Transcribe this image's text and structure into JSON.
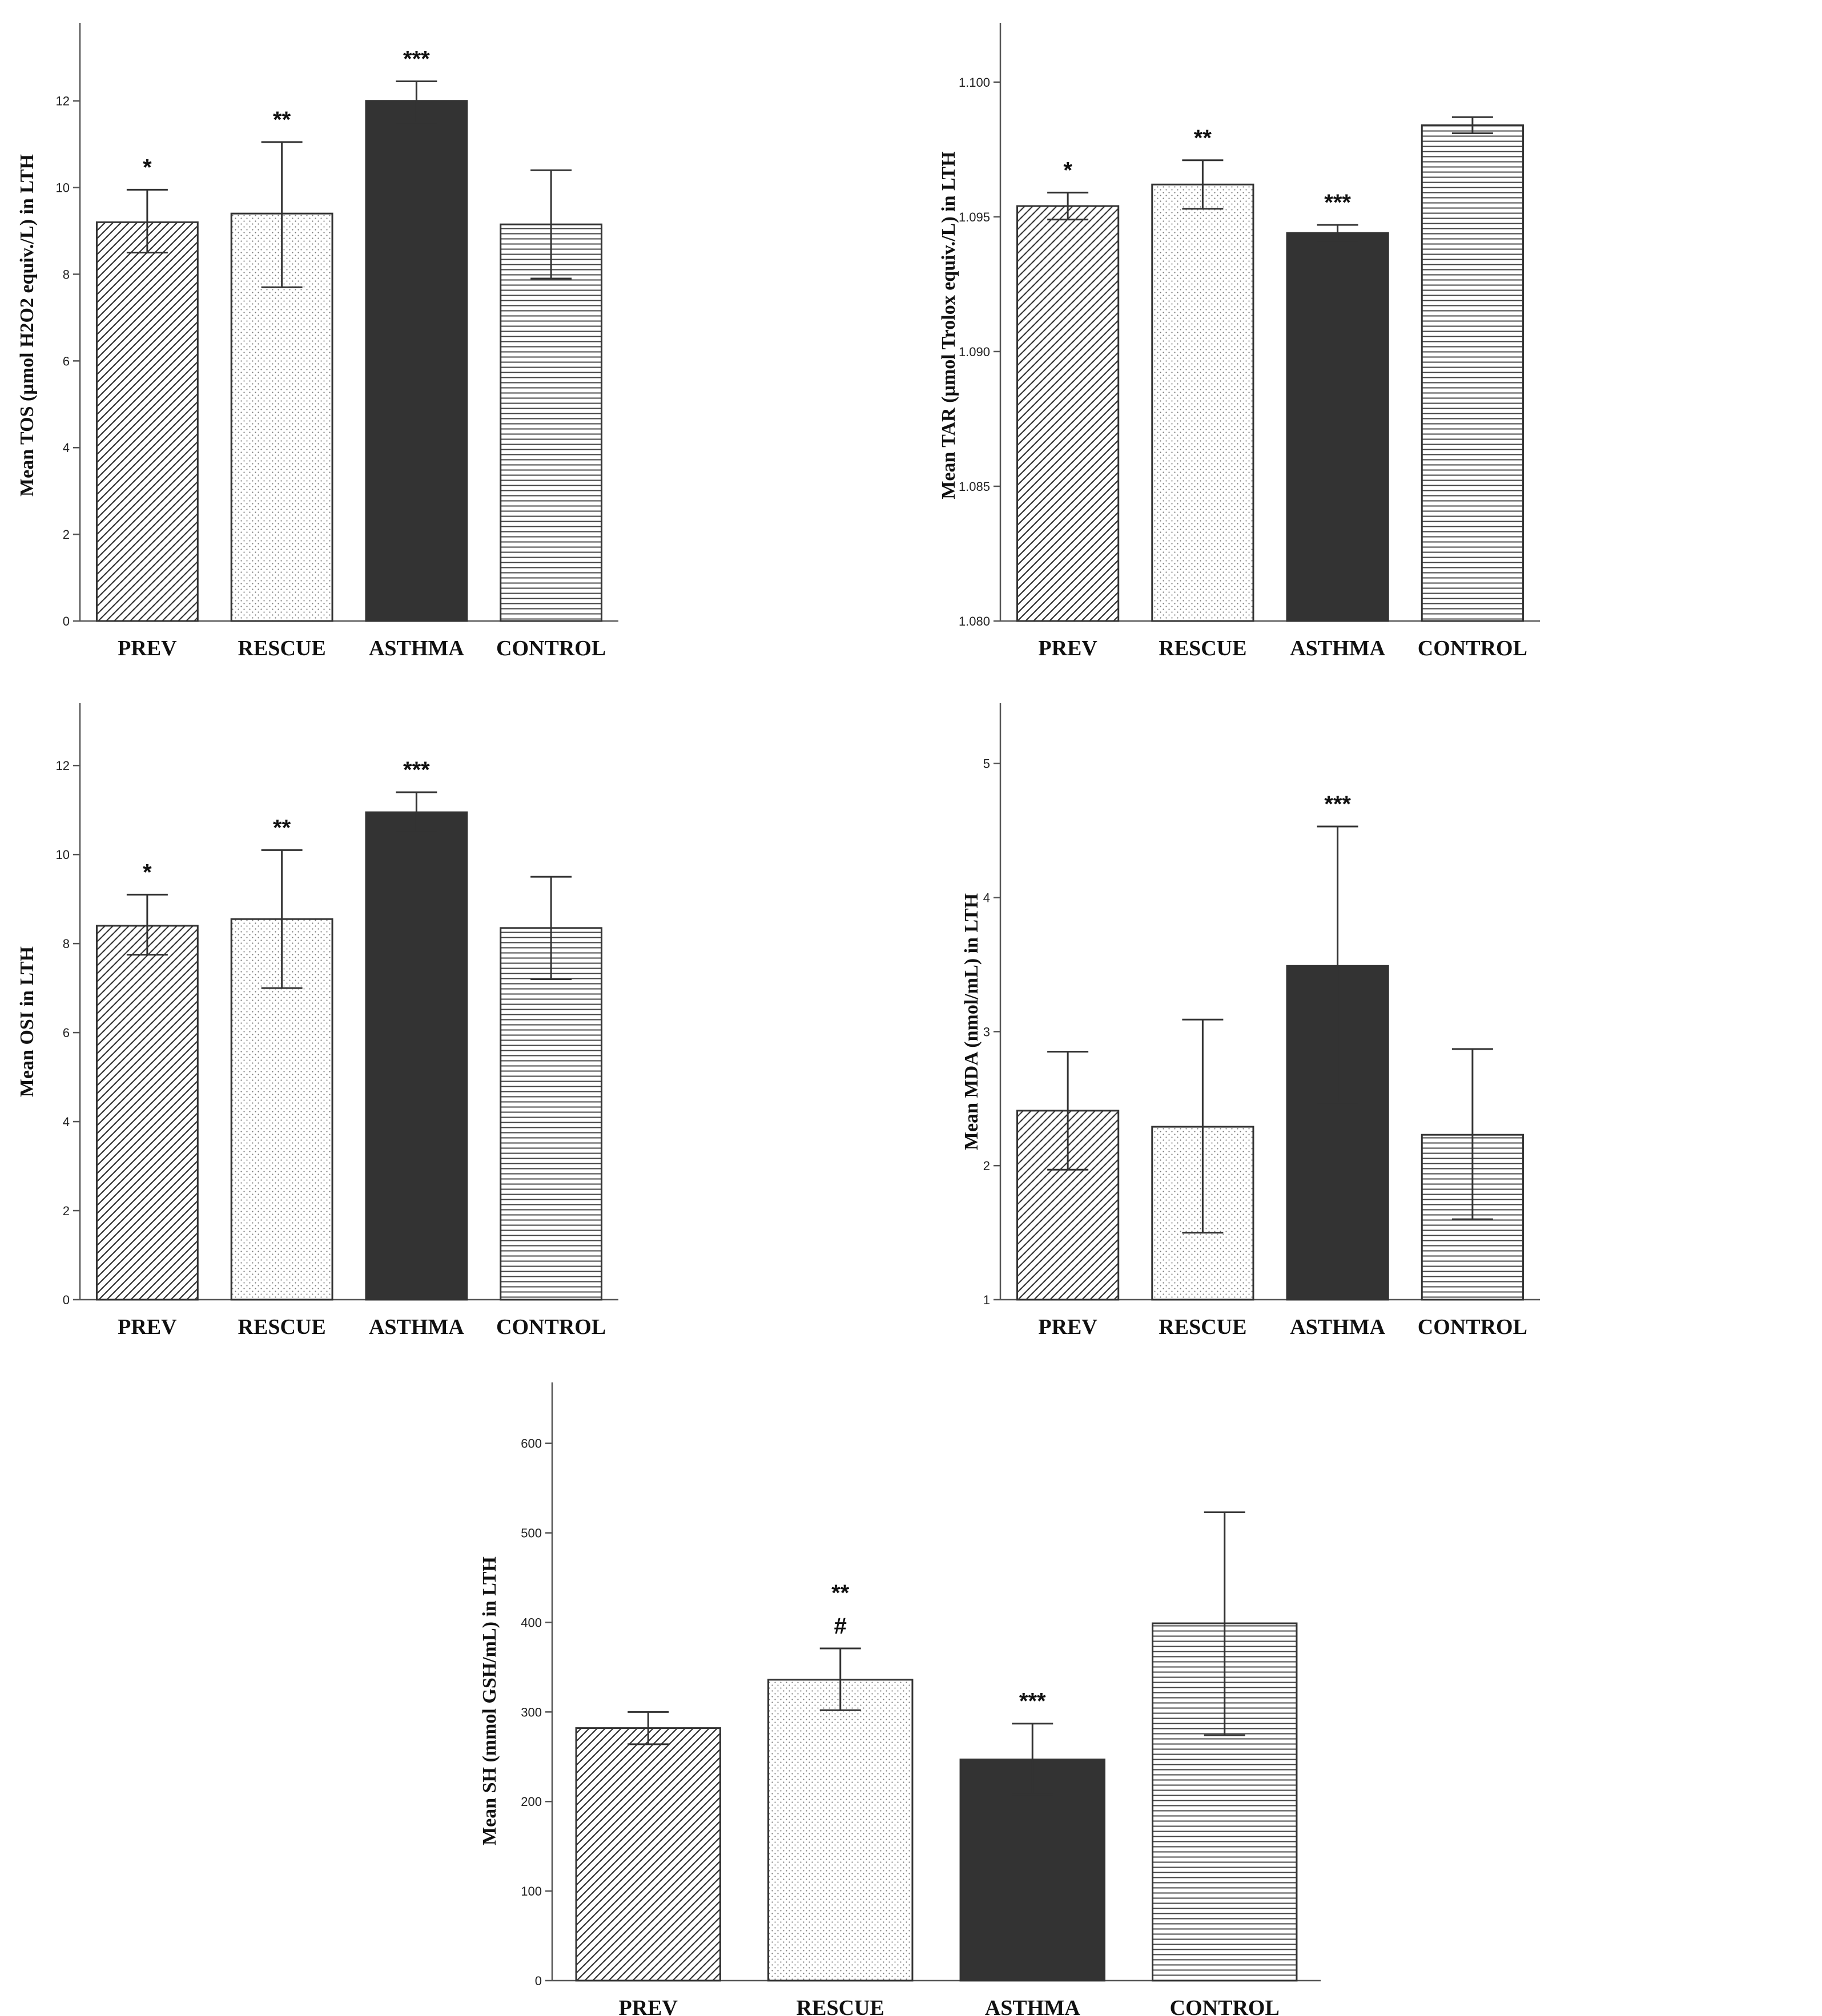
{
  "chart_data": [
    {
      "type": "bar",
      "ylabel": "Mean TOS (µmol H2O2 equiv./L) in LTH",
      "categories": [
        "PREV",
        "RESCUE",
        "ASTHMA",
        "CONTROL"
      ],
      "values": [
        9.2,
        9.4,
        12.0,
        9.15
      ],
      "errors": [
        [
          8.5,
          9.95
        ],
        [
          7.7,
          11.05
        ],
        [
          11.5,
          12.45
        ],
        [
          7.9,
          10.4
        ]
      ],
      "annotations": [
        "*",
        "**",
        "***",
        ""
      ],
      "ylim": [
        0,
        13.8
      ],
      "yticks": [
        0,
        2,
        4,
        6,
        8,
        10,
        12
      ],
      "ytick_labels": [
        "0",
        "2",
        "4",
        "6",
        "8",
        "10",
        "12"
      ]
    },
    {
      "type": "bar",
      "ylabel": "Mean TAR (µmol Trolox equiv./L) in LTH",
      "categories": [
        "PREV",
        "RESCUE",
        "ASTHMA",
        "CONTROL"
      ],
      "values": [
        1.0954,
        1.0962,
        1.0944,
        1.0984
      ],
      "errors": [
        [
          1.0949,
          1.0959
        ],
        [
          1.0953,
          1.0971
        ],
        [
          1.0941,
          1.0947
        ],
        [
          1.0981,
          1.0987
        ]
      ],
      "annotations": [
        "*",
        "**",
        "***",
        ""
      ],
      "ylim": [
        1.08,
        1.1022
      ],
      "yticks": [
        1.08,
        1.085,
        1.09,
        1.095,
        1.1
      ],
      "ytick_labels": [
        "1.080",
        "1.085",
        "1.090",
        "1.095",
        "1.100"
      ]
    },
    {
      "type": "bar",
      "ylabel": "Mean OSI in LTH",
      "categories": [
        "PREV",
        "RESCUE",
        "ASTHMA",
        "CONTROL"
      ],
      "values": [
        8.4,
        8.55,
        10.95,
        8.35
      ],
      "errors": [
        [
          7.75,
          9.1
        ],
        [
          7.0,
          10.1
        ],
        [
          10.5,
          11.4
        ],
        [
          7.2,
          9.5
        ]
      ],
      "annotations": [
        "*",
        "**",
        "***",
        ""
      ],
      "ylim": [
        0,
        13.4
      ],
      "yticks": [
        0,
        2,
        4,
        6,
        8,
        10,
        12
      ],
      "ytick_labels": [
        "0",
        "2",
        "4",
        "6",
        "8",
        "10",
        "12"
      ]
    },
    {
      "type": "bar",
      "ylabel": "Mean MDA (nmol/mL) in LTH",
      "categories": [
        "PREV",
        "RESCUE",
        "ASTHMA",
        "CONTROL"
      ],
      "values": [
        2.41,
        2.29,
        3.49,
        2.23
      ],
      "errors": [
        [
          1.97,
          2.85
        ],
        [
          1.5,
          3.09
        ],
        [
          2.47,
          4.53
        ],
        [
          1.6,
          2.87
        ]
      ],
      "annotations": [
        "",
        "",
        "***",
        ""
      ],
      "ylim": [
        1,
        5.45
      ],
      "yticks": [
        1,
        2,
        3,
        4,
        5
      ],
      "ytick_labels": [
        "1",
        "2",
        "3",
        "4",
        "5"
      ]
    },
    {
      "type": "bar",
      "ylabel": "Mean SH (mmol GSH/mL) in LTH",
      "categories": [
        "PREV",
        "RESCUE",
        "ASTHMA",
        "CONTROL"
      ],
      "values": [
        282,
        336,
        247,
        399
      ],
      "errors": [
        [
          264,
          300
        ],
        [
          302,
          371
        ],
        [
          208,
          287
        ],
        [
          274,
          523
        ]
      ],
      "annotations": [
        "",
        "**\n#",
        "***",
        ""
      ],
      "ylim": [
        0,
        668
      ],
      "yticks": [
        0,
        100,
        200,
        300,
        400,
        500,
        600
      ],
      "ytick_labels": [
        "0",
        "100",
        "200",
        "300",
        "400",
        "500",
        "600"
      ]
    }
  ]
}
